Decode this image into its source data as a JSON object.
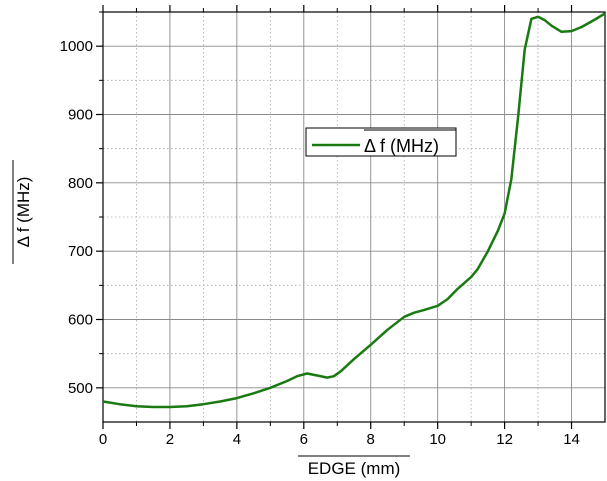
{
  "chart_data": {
    "type": "line",
    "title": "",
    "xlabel": "EDGE (mm)",
    "ylabel": "Δ f (MHz)",
    "xlim": [
      0,
      15
    ],
    "ylim": [
      450,
      1050
    ],
    "x_ticks": [
      0,
      2,
      4,
      6,
      8,
      10,
      12,
      14
    ],
    "x_tick_labels": [
      "0",
      "2",
      "4",
      "6",
      "8",
      "10",
      "12",
      "14"
    ],
    "y_ticks": [
      500,
      600,
      700,
      800,
      900,
      1000
    ],
    "y_tick_labels": [
      "500",
      "600",
      "700",
      "800",
      "900",
      "1000"
    ],
    "grid": true,
    "legend_position": "upper-center",
    "colors": {
      "series": "#1a7a12"
    },
    "series": [
      {
        "name": "Δ f (MHz)",
        "x": [
          0,
          0.5,
          1,
          1.5,
          2,
          2.5,
          3,
          3.5,
          4,
          4.5,
          5,
          5.5,
          5.8,
          6.1,
          6.4,
          6.7,
          6.9,
          7.1,
          7.5,
          8,
          8.5,
          9,
          9.3,
          9.6,
          10,
          10.3,
          10.6,
          11,
          11.2,
          11.5,
          11.8,
          12,
          12.2,
          12.4,
          12.6,
          12.8,
          13,
          13.2,
          13.4,
          13.7,
          14,
          14.3,
          14.7,
          15
        ],
        "values": [
          480,
          476,
          473,
          472,
          472,
          473,
          476,
          480,
          485,
          492,
          500,
          510,
          517,
          521,
          518,
          515,
          517,
          524,
          542,
          563,
          585,
          604,
          610,
          614,
          620,
          630,
          645,
          662,
          674,
          700,
          730,
          755,
          805,
          895,
          995,
          1040,
          1043,
          1038,
          1030,
          1021,
          1022,
          1028,
          1039,
          1048
        ]
      }
    ]
  }
}
